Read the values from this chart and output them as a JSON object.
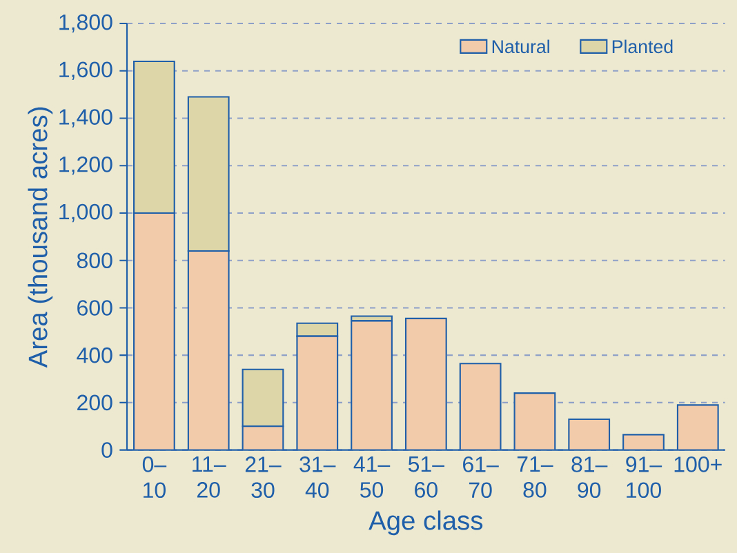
{
  "chart_data": {
    "type": "bar",
    "stacked": true,
    "xlabel": "Age class",
    "ylabel": "Area (thousand acres)",
    "categories": [
      "0– 10",
      "11– 20",
      "21– 30",
      "31– 40",
      "41– 50",
      "51– 60",
      "61– 70",
      "71– 80",
      "81– 90",
      "91– 100",
      "100+"
    ],
    "series": [
      {
        "name": "Natural",
        "color": "#f2cbaa",
        "values": [
          1000,
          840,
          100,
          480,
          545,
          555,
          365,
          240,
          130,
          65,
          190
        ]
      },
      {
        "name": "Planted",
        "color": "#ddd6a8",
        "values": [
          640,
          650,
          240,
          55,
          20,
          0,
          0,
          0,
          0,
          0,
          0
        ]
      }
    ],
    "ylim": [
      0,
      1800
    ],
    "yticks": [
      0,
      {
        "value": 200,
        "label": "200"
      },
      {
        "value": 400,
        "label": "400"
      },
      {
        "value": 600,
        "label": "600"
      },
      {
        "value": 800,
        "label": "800"
      },
      {
        "value": 1000,
        "label": "1,000"
      },
      {
        "value": 1200,
        "label": "1,200"
      },
      {
        "value": 1400,
        "label": "1,400"
      },
      {
        "value": 1600,
        "label": "1,600"
      },
      {
        "value": 1800,
        "label": "1,800"
      }
    ],
    "grid": "y",
    "legend": "top right"
  }
}
